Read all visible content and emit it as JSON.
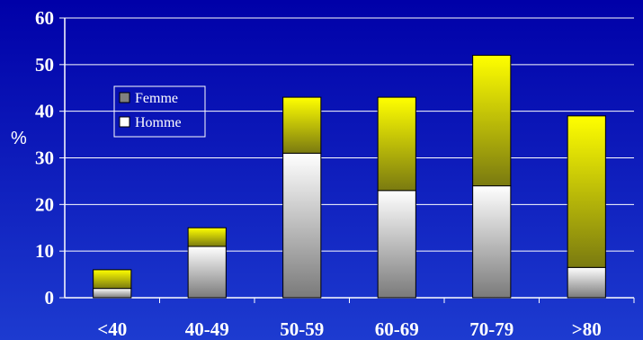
{
  "colors": {
    "background_top": "#0000a8",
    "background_bottom": "#1d3bd0",
    "grid": "#ffffff",
    "homme_light": "#ffffff",
    "homme_dark": "#7a7a7a",
    "femme_light": "#ffff00",
    "femme_dark": "#7a7a10"
  },
  "chart_data": {
    "type": "bar",
    "stacked": true,
    "categories": [
      "<40",
      "40-49",
      "50-59",
      "60-69",
      "70-79",
      ">80"
    ],
    "series": [
      {
        "name": "Homme",
        "values": [
          2,
          11,
          31,
          23,
          24,
          6.5
        ]
      },
      {
        "name": "Femme",
        "values": [
          4,
          4,
          12,
          20,
          28,
          32.5
        ]
      }
    ],
    "totals": [
      6,
      15,
      43,
      43,
      52,
      39
    ],
    "title": "",
    "xlabel": "",
    "ylabel": "%",
    "ylim": [
      0,
      60
    ],
    "yticks": [
      "0",
      "10",
      "20",
      "30",
      "40",
      "50",
      "60"
    ],
    "grid": true,
    "legend": {
      "position": "upper-left",
      "entries": [
        "Femme",
        "Homme"
      ]
    }
  }
}
